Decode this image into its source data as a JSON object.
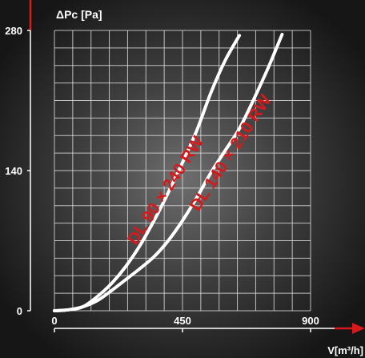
{
  "chart_data": {
    "type": "line",
    "ylabel": "ΔPc [Pa]",
    "xlabel": "V[m³/h]",
    "xlim": [
      0,
      900
    ],
    "ylim": [
      0,
      280
    ],
    "x_ticks": [
      "0",
      "450",
      "900"
    ],
    "y_ticks": [
      "0",
      "140",
      "280"
    ],
    "grid": true,
    "series": [
      {
        "name": "DL 90 × 240 RW",
        "color": "#ffffff",
        "label_color": "#d7191c",
        "points": [
          [
            0,
            0
          ],
          [
            50,
            1
          ],
          [
            100,
            4
          ],
          [
            150,
            14
          ],
          [
            200,
            27
          ],
          [
            250,
            44
          ],
          [
            300,
            65
          ],
          [
            350,
            90
          ],
          [
            400,
            118
          ],
          [
            450,
            148
          ],
          [
            500,
            180
          ],
          [
            550,
            218
          ],
          [
            600,
            250
          ],
          [
            650,
            275
          ]
        ]
      },
      {
        "name": "DL 140 × 210 RW",
        "color": "#ffffff",
        "label_color": "#d7191c",
        "points": [
          [
            0,
            0
          ],
          [
            50,
            1
          ],
          [
            100,
            4
          ],
          [
            150,
            10
          ],
          [
            200,
            20
          ],
          [
            250,
            31
          ],
          [
            300,
            42
          ],
          [
            350,
            54
          ],
          [
            400,
            70
          ],
          [
            450,
            90
          ],
          [
            500,
            113
          ],
          [
            550,
            138
          ],
          [
            600,
            160
          ],
          [
            650,
            182
          ],
          [
            700,
            211
          ],
          [
            750,
            242
          ],
          [
            800,
            276
          ]
        ]
      }
    ]
  }
}
